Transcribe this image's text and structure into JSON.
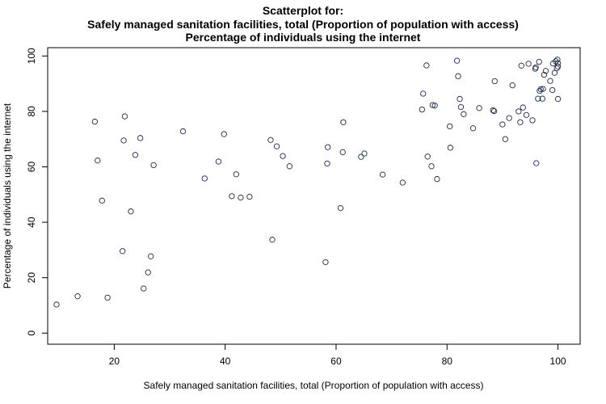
{
  "chart_data": {
    "type": "scatter",
    "title": [
      "Scatterplot for:",
      "Safely managed sanitation facilities, total (Proportion of population with access)",
      "Percentage of individuals using the internet"
    ],
    "xlabel": "Safely managed sanitation facilities, total (Proportion of population with access)",
    "ylabel": "Percentage of individuals using the internet",
    "xlim": [
      8,
      104
    ],
    "ylim": [
      -4,
      103
    ],
    "xticks": [
      20,
      40,
      60,
      80,
      100
    ],
    "yticks": [
      0,
      20,
      40,
      60,
      80,
      100
    ],
    "grid": false,
    "legend": "none",
    "marker": "open-circle",
    "colors": {
      "point": "#1f2a44",
      "axis": "#000000"
    },
    "points": [
      [
        9.6,
        10.3
      ],
      [
        13.4,
        13.3
      ],
      [
        18.8,
        12.8
      ],
      [
        16.5,
        76.3
      ],
      [
        17.0,
        62.3
      ],
      [
        17.8,
        47.8
      ],
      [
        21.5,
        29.6
      ],
      [
        21.7,
        69.5
      ],
      [
        21.9,
        78.2
      ],
      [
        23.0,
        43.9
      ],
      [
        23.8,
        64.3
      ],
      [
        24.7,
        70.4
      ],
      [
        25.3,
        16.1
      ],
      [
        26.1,
        21.9
      ],
      [
        26.6,
        27.7
      ],
      [
        27.1,
        60.6
      ],
      [
        32.4,
        72.8
      ],
      [
        36.3,
        55.8
      ],
      [
        38.8,
        61.9
      ],
      [
        39.8,
        71.8
      ],
      [
        41.2,
        49.4
      ],
      [
        42.0,
        57.3
      ],
      [
        42.8,
        48.9
      ],
      [
        44.4,
        49.2
      ],
      [
        48.2,
        69.7
      ],
      [
        48.5,
        33.7
      ],
      [
        49.3,
        67.4
      ],
      [
        50.4,
        63.9
      ],
      [
        51.6,
        60.2
      ],
      [
        58.1,
        25.6
      ],
      [
        58.4,
        61.2
      ],
      [
        58.5,
        67.1
      ],
      [
        60.8,
        45.1
      ],
      [
        61.2,
        65.3
      ],
      [
        61.3,
        76.1
      ],
      [
        64.5,
        63.6
      ],
      [
        65.1,
        64.8
      ],
      [
        68.4,
        57.2
      ],
      [
        72.0,
        54.3
      ],
      [
        75.5,
        80.7
      ],
      [
        75.7,
        86.4
      ],
      [
        76.3,
        96.6
      ],
      [
        76.5,
        63.7
      ],
      [
        77.2,
        60.2
      ],
      [
        77.4,
        82.3
      ],
      [
        77.8,
        82.1
      ],
      [
        78.2,
        55.6
      ],
      [
        80.5,
        74.6
      ],
      [
        80.6,
        66.9
      ],
      [
        81.8,
        98.3
      ],
      [
        82.0,
        92.7
      ],
      [
        82.3,
        84.5
      ],
      [
        82.5,
        81.6
      ],
      [
        83.0,
        79.0
      ],
      [
        84.7,
        73.9
      ],
      [
        85.8,
        81.2
      ],
      [
        88.3,
        80.4
      ],
      [
        88.5,
        80.1
      ],
      [
        88.6,
        90.9
      ],
      [
        90.0,
        75.3
      ],
      [
        90.5,
        70.0
      ],
      [
        91.2,
        77.6
      ],
      [
        91.8,
        89.4
      ],
      [
        92.9,
        80.0
      ],
      [
        93.2,
        76.1
      ],
      [
        93.4,
        96.5
      ],
      [
        93.7,
        81.4
      ],
      [
        94.3,
        78.7
      ],
      [
        94.7,
        97.2
      ],
      [
        95.4,
        76.8
      ],
      [
        95.9,
        95.4
      ],
      [
        96.0,
        95.9
      ],
      [
        96.1,
        61.3
      ],
      [
        96.4,
        84.6
      ],
      [
        96.6,
        97.9
      ],
      [
        96.7,
        87.4
      ],
      [
        96.9,
        88.0
      ],
      [
        97.2,
        84.6
      ],
      [
        97.3,
        88.1
      ],
      [
        97.5,
        93.2
      ],
      [
        97.8,
        94.6
      ],
      [
        98.6,
        91.0
      ],
      [
        99.0,
        87.7
      ],
      [
        99.1,
        97.3
      ],
      [
        99.4,
        93.9
      ],
      [
        99.6,
        98.1
      ],
      [
        99.8,
        95.6
      ],
      [
        99.9,
        98.7
      ],
      [
        100.0,
        84.5
      ],
      [
        100.0,
        97.4
      ],
      [
        100.0,
        96.2
      ]
    ]
  }
}
